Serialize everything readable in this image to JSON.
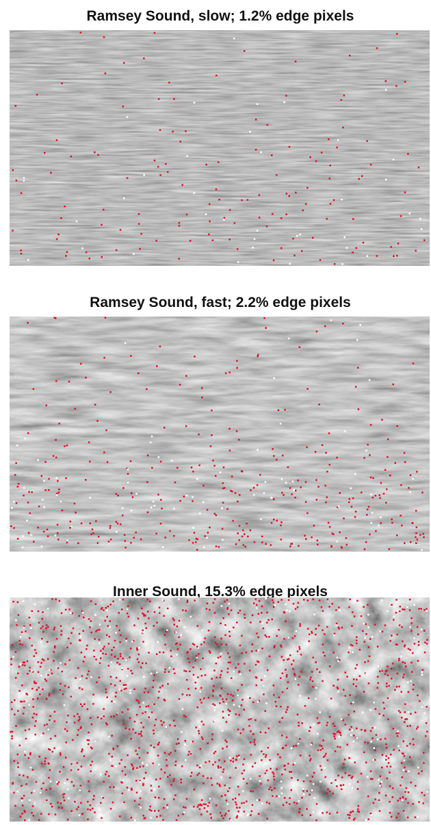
{
  "panels": [
    {
      "title": "Ramsey Sound, slow; 1.2% edge pixels"
    },
    {
      "title": "Ramsey Sound, fast; 2.2% edge pixels"
    },
    {
      "title": "Inner Sound, 15.3% edge pixels"
    }
  ]
}
